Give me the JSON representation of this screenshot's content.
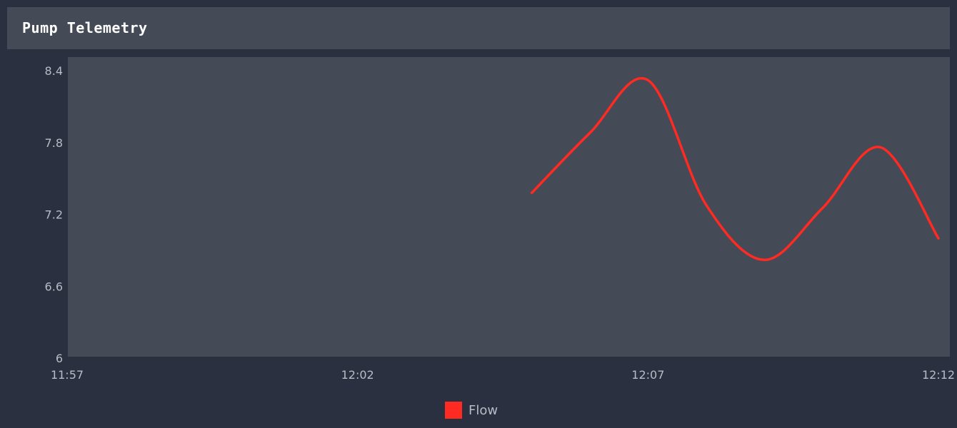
{
  "panel": {
    "title": "Pump Telemetry"
  },
  "colors": {
    "background": "#2b3040",
    "plot_background": "#444a56",
    "series": "#ff2a22",
    "tick_text": "#b7bcc6"
  },
  "chart_data": {
    "type": "line",
    "title": "",
    "xlabel": "",
    "ylabel": "",
    "x_ticks": [
      "11:57",
      "12:02",
      "12:07",
      "12:12"
    ],
    "y_ticks": [
      "8.4",
      "7.8",
      "7.2",
      "6.6",
      "6"
    ],
    "ylim": [
      6,
      8.4
    ],
    "xlim": [
      "11:57",
      "12:12"
    ],
    "grid": false,
    "legend": "bottom-center",
    "series": [
      {
        "name": "Flow",
        "x": [
          "12:05",
          "12:06",
          "12:07",
          "12:08",
          "12:09",
          "12:10",
          "12:11",
          "12:12"
        ],
        "y": [
          7.38,
          7.88,
          8.32,
          7.28,
          6.82,
          7.25,
          7.76,
          7.0
        ]
      }
    ]
  }
}
